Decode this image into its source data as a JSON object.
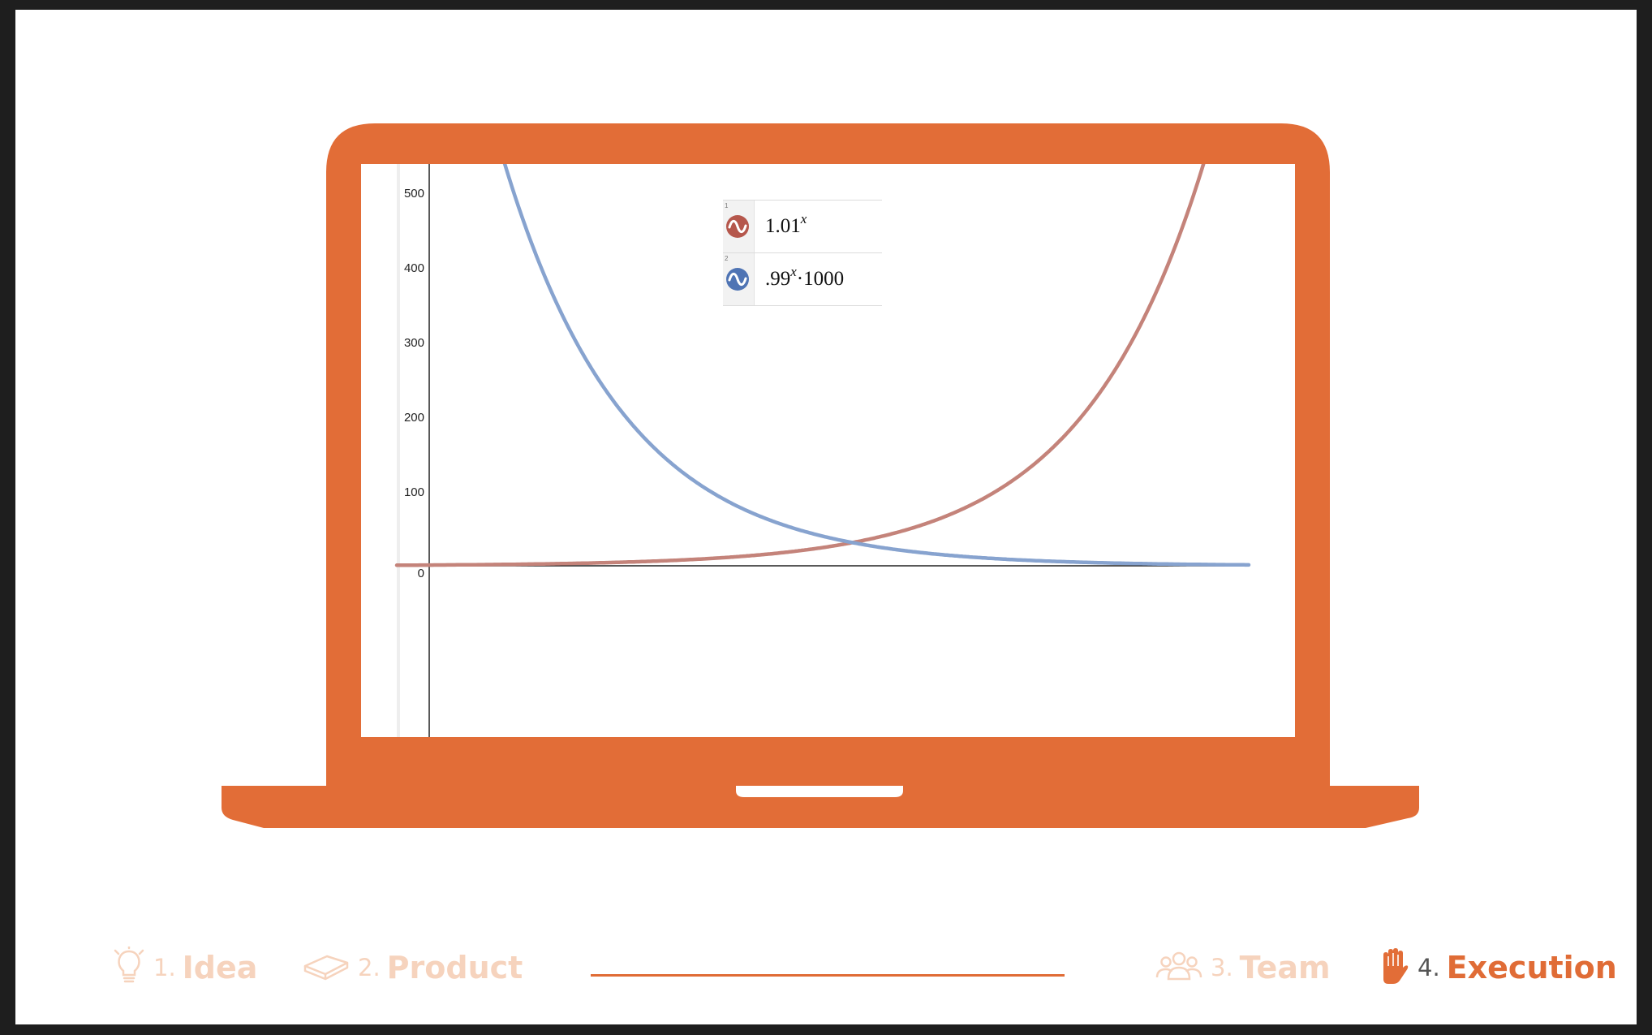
{
  "colors": {
    "accent": "#e26d37",
    "faded": "#f6d3bd",
    "curve_growth": "#c4837a",
    "curve_decay": "#87a3cf",
    "icon_growth": "#b5574c",
    "icon_decay": "#4f74b4"
  },
  "graph": {
    "y_ticks": [
      "500",
      "400",
      "300",
      "200",
      "100",
      "0"
    ],
    "expressions": [
      {
        "index": "1",
        "base": "1.01",
        "exponent": "x",
        "suffix": "",
        "color_icon": "wave-icon-red"
      },
      {
        "index": "2",
        "base": ".99",
        "exponent": "x",
        "suffix": "·1000",
        "color_icon": "wave-icon-blue"
      }
    ]
  },
  "chart_data": {
    "type": "line",
    "series": [
      {
        "name": "1.01^x",
        "formula": "1.01^x",
        "color": "#c4837a"
      },
      {
        "name": ".99^x·1000",
        "formula": "0.99^x*1000",
        "color": "#87a3cf"
      }
    ],
    "ylim": [
      0,
      560
    ],
    "y_ticks": [
      0,
      100,
      200,
      300,
      400,
      500
    ]
  },
  "footer": {
    "steps": [
      {
        "num": "1.",
        "label": "Idea",
        "icon": "lightbulb-icon",
        "state": "inactive"
      },
      {
        "num": "2.",
        "label": "Product",
        "icon": "box-icon",
        "state": "inactive"
      },
      {
        "num": "3.",
        "label": "Team",
        "icon": "people-icon",
        "state": "inactive"
      },
      {
        "num": "4.",
        "label": "Execution",
        "icon": "hand-icon",
        "state": "active"
      }
    ]
  }
}
